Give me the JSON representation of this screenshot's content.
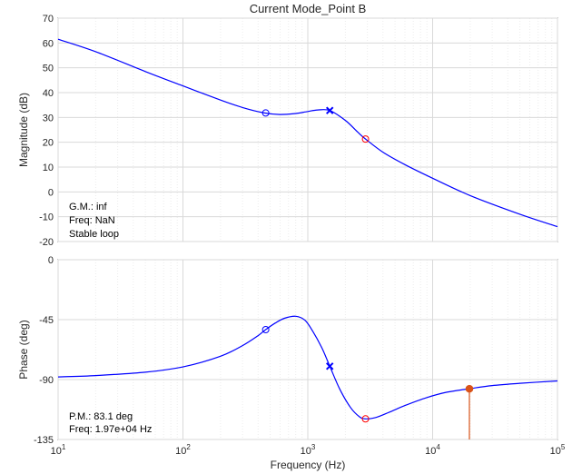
{
  "chart_data": [
    {
      "type": "line",
      "title": "Current Mode_Point B",
      "ylabel": "Magnitude (dB)",
      "xlabel": "",
      "xscale": "log",
      "xlim": [
        10,
        100000
      ],
      "ylim": [
        -20,
        70
      ],
      "yticks": [
        "70",
        "60",
        "50",
        "40",
        "30",
        "20",
        "10",
        "0",
        "-10",
        "-20"
      ],
      "grid": true,
      "series": [
        {
          "color": "#0000ff",
          "x": [
            10,
            20,
            50,
            100,
            200,
            300,
            450,
            600,
            800,
            1000,
            1200,
            1500,
            2000,
            2500,
            2900,
            4000,
            6000,
            10000,
            20000,
            50000,
            100000
          ],
          "y": [
            61.5,
            56.5,
            48.5,
            42.7,
            37.0,
            34.0,
            31.8,
            31.2,
            31.6,
            32.4,
            33.0,
            32.8,
            28.8,
            24.2,
            21.3,
            16.0,
            11.0,
            5.5,
            -1.5,
            -9.0,
            -14.0
          ]
        }
      ],
      "markers": [
        {
          "shape": "circle",
          "color": "#0000ff",
          "x": 460,
          "y": 31.8
        },
        {
          "shape": "x",
          "color": "#0000ff",
          "x": 1500,
          "y": 32.8
        },
        {
          "shape": "circle",
          "color": "#ff0000",
          "x": 2900,
          "y": 21.3
        }
      ],
      "annotations": [
        "G.M.: inf",
        "Freq: NaN",
        "Stable loop"
      ]
    },
    {
      "type": "line",
      "title": "",
      "ylabel": "Phase (deg)",
      "xlabel": "Frequency (Hz)",
      "xscale": "log",
      "xlim": [
        10,
        100000
      ],
      "ylim": [
        -135,
        0
      ],
      "yticks": [
        "0",
        "-45",
        "-90",
        "-135"
      ],
      "xticklabels": [
        {
          "base": "10",
          "exp": "1"
        },
        {
          "base": "10",
          "exp": "2"
        },
        {
          "base": "10",
          "exp": "3"
        },
        {
          "base": "10",
          "exp": "4"
        },
        {
          "base": "10",
          "exp": "5"
        }
      ],
      "grid": true,
      "series": [
        {
          "color": "#0000ff",
          "x": [
            10,
            20,
            50,
            100,
            200,
            300,
            400,
            460,
            550,
            650,
            800,
            950,
            1100,
            1300,
            1500,
            1800,
            2200,
            2600,
            2900,
            3500,
            4500,
            6000,
            9000,
            13000,
            19700,
            30000,
            50000,
            100000
          ],
          "y": [
            -88.0,
            -87.0,
            -84.5,
            -80.5,
            -72.5,
            -64.5,
            -57.0,
            -52.5,
            -47.5,
            -44.0,
            -42.5,
            -45.5,
            -54.0,
            -66.5,
            -80.0,
            -97.0,
            -111.0,
            -118.0,
            -119.5,
            -118.5,
            -114.5,
            -109.5,
            -103.5,
            -99.5,
            -96.9,
            -94.5,
            -92.8,
            -91.0
          ]
        }
      ],
      "markers": [
        {
          "shape": "circle",
          "color": "#0000ff",
          "x": 460,
          "y": -52.5
        },
        {
          "shape": "x",
          "color": "#0000ff",
          "x": 1500,
          "y": -80.0
        },
        {
          "shape": "circle",
          "color": "#ff0000",
          "x": 2900,
          "y": -119.5
        },
        {
          "shape": "dot",
          "color": "#d95319",
          "x": 19700,
          "y": -96.9,
          "stem_to": -135
        }
      ],
      "annotations": [
        "P.M.: 83.1 deg",
        "Freq: 1.97e+04 Hz"
      ]
    }
  ]
}
